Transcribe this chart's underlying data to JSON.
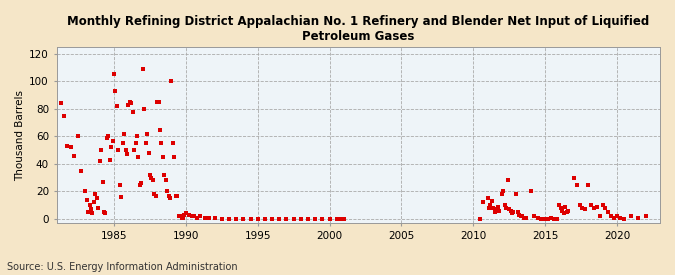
{
  "title": "Monthly Refining District Appalachian No. 1 Refinery and Blender Net Input of Liquified\nPetroleum Gases",
  "ylabel": "Thousand Barrels",
  "source": "Source: U.S. Energy Information Administration",
  "outer_bg": "#f5e6c8",
  "plot_bg": "#eef4f8",
  "marker_color": "#dd0000",
  "marker_size": 9,
  "xlim": [
    1981.0,
    2023.0
  ],
  "ylim": [
    -3,
    125
  ],
  "yticks": [
    0,
    20,
    40,
    60,
    80,
    100,
    120
  ],
  "xticks": [
    1985,
    1990,
    1995,
    2000,
    2005,
    2010,
    2015,
    2020
  ],
  "data_points": [
    [
      1981.3,
      84
    ],
    [
      1981.5,
      75
    ],
    [
      1981.7,
      53
    ],
    [
      1982.0,
      52
    ],
    [
      1982.2,
      46
    ],
    [
      1982.5,
      60
    ],
    [
      1982.7,
      35
    ],
    [
      1983.0,
      20
    ],
    [
      1983.1,
      14
    ],
    [
      1983.2,
      5
    ],
    [
      1983.3,
      10
    ],
    [
      1983.4,
      7
    ],
    [
      1983.5,
      4
    ],
    [
      1983.6,
      12
    ],
    [
      1983.7,
      18
    ],
    [
      1983.8,
      15
    ],
    [
      1983.9,
      8
    ],
    [
      1984.0,
      42
    ],
    [
      1984.1,
      50
    ],
    [
      1984.2,
      27
    ],
    [
      1984.3,
      5
    ],
    [
      1984.4,
      4
    ],
    [
      1984.5,
      59
    ],
    [
      1984.6,
      60
    ],
    [
      1984.7,
      43
    ],
    [
      1984.8,
      52
    ],
    [
      1984.9,
      57
    ],
    [
      1985.0,
      105
    ],
    [
      1985.1,
      93
    ],
    [
      1985.2,
      82
    ],
    [
      1985.3,
      50
    ],
    [
      1985.4,
      25
    ],
    [
      1985.5,
      16
    ],
    [
      1985.6,
      55
    ],
    [
      1985.7,
      62
    ],
    [
      1985.8,
      50
    ],
    [
      1985.9,
      47
    ],
    [
      1986.0,
      83
    ],
    [
      1986.1,
      85
    ],
    [
      1986.2,
      84
    ],
    [
      1986.3,
      78
    ],
    [
      1986.4,
      50
    ],
    [
      1986.5,
      55
    ],
    [
      1986.6,
      60
    ],
    [
      1986.7,
      45
    ],
    [
      1986.8,
      25
    ],
    [
      1986.9,
      26
    ],
    [
      1987.0,
      109
    ],
    [
      1987.1,
      80
    ],
    [
      1987.2,
      55
    ],
    [
      1987.3,
      62
    ],
    [
      1987.4,
      48
    ],
    [
      1987.5,
      32
    ],
    [
      1987.6,
      30
    ],
    [
      1987.7,
      28
    ],
    [
      1987.8,
      18
    ],
    [
      1987.9,
      17
    ],
    [
      1988.0,
      85
    ],
    [
      1988.1,
      85
    ],
    [
      1988.2,
      65
    ],
    [
      1988.3,
      55
    ],
    [
      1988.4,
      45
    ],
    [
      1988.5,
      32
    ],
    [
      1988.6,
      28
    ],
    [
      1988.7,
      20
    ],
    [
      1988.8,
      17
    ],
    [
      1988.9,
      15
    ],
    [
      1989.0,
      100
    ],
    [
      1989.1,
      55
    ],
    [
      1989.2,
      45
    ],
    [
      1989.3,
      17
    ],
    [
      1989.4,
      17
    ],
    [
      1989.5,
      2
    ],
    [
      1989.6,
      2
    ],
    [
      1989.7,
      1
    ],
    [
      1989.8,
      1
    ],
    [
      1989.9,
      3
    ],
    [
      1990.0,
      4
    ],
    [
      1990.2,
      3
    ],
    [
      1990.4,
      2
    ],
    [
      1990.6,
      2
    ],
    [
      1990.8,
      1
    ],
    [
      1991.0,
      2
    ],
    [
      1991.3,
      1
    ],
    [
      1991.6,
      1
    ],
    [
      1992.0,
      1
    ],
    [
      1992.5,
      0
    ],
    [
      1993.0,
      0
    ],
    [
      1993.5,
      0
    ],
    [
      1994.0,
      0
    ],
    [
      1994.5,
      0
    ],
    [
      1995.0,
      0
    ],
    [
      1995.5,
      0
    ],
    [
      1996.0,
      0
    ],
    [
      1996.5,
      0
    ],
    [
      1997.0,
      0
    ],
    [
      1997.5,
      0
    ],
    [
      1998.0,
      0
    ],
    [
      1998.5,
      0
    ],
    [
      1999.0,
      0
    ],
    [
      1999.5,
      0
    ],
    [
      2000.0,
      0
    ],
    [
      2000.5,
      0
    ],
    [
      2000.8,
      0
    ],
    [
      2001.0,
      0
    ],
    [
      2010.5,
      0
    ],
    [
      2010.7,
      12
    ],
    [
      2011.0,
      15
    ],
    [
      2011.1,
      8
    ],
    [
      2011.2,
      10
    ],
    [
      2011.3,
      13
    ],
    [
      2011.4,
      8
    ],
    [
      2011.5,
      5
    ],
    [
      2011.6,
      7
    ],
    [
      2011.7,
      9
    ],
    [
      2011.8,
      6
    ],
    [
      2012.0,
      18
    ],
    [
      2012.1,
      20
    ],
    [
      2012.2,
      10
    ],
    [
      2012.3,
      8
    ],
    [
      2012.4,
      28
    ],
    [
      2012.5,
      7
    ],
    [
      2012.6,
      6
    ],
    [
      2012.7,
      4
    ],
    [
      2012.8,
      5
    ],
    [
      2013.0,
      18
    ],
    [
      2013.1,
      5
    ],
    [
      2013.2,
      3
    ],
    [
      2013.3,
      2
    ],
    [
      2013.4,
      2
    ],
    [
      2013.5,
      1
    ],
    [
      2013.6,
      1
    ],
    [
      2013.7,
      1
    ],
    [
      2014.0,
      20
    ],
    [
      2014.2,
      2
    ],
    [
      2014.5,
      1
    ],
    [
      2014.7,
      0
    ],
    [
      2015.0,
      0
    ],
    [
      2015.2,
      0
    ],
    [
      2015.4,
      1
    ],
    [
      2015.6,
      0
    ],
    [
      2015.8,
      0
    ],
    [
      2016.0,
      10
    ],
    [
      2016.1,
      8
    ],
    [
      2016.2,
      6
    ],
    [
      2016.3,
      4
    ],
    [
      2016.4,
      9
    ],
    [
      2016.5,
      5
    ],
    [
      2016.6,
      6
    ],
    [
      2017.0,
      30
    ],
    [
      2017.2,
      25
    ],
    [
      2017.4,
      10
    ],
    [
      2017.6,
      8
    ],
    [
      2017.8,
      7
    ],
    [
      2018.0,
      25
    ],
    [
      2018.2,
      10
    ],
    [
      2018.4,
      8
    ],
    [
      2018.6,
      9
    ],
    [
      2018.8,
      2
    ],
    [
      2019.0,
      10
    ],
    [
      2019.2,
      8
    ],
    [
      2019.4,
      5
    ],
    [
      2019.6,
      2
    ],
    [
      2019.8,
      1
    ],
    [
      2020.0,
      2
    ],
    [
      2020.2,
      1
    ],
    [
      2020.5,
      0
    ],
    [
      2021.0,
      2
    ],
    [
      2021.5,
      1
    ],
    [
      2022.0,
      2
    ]
  ]
}
